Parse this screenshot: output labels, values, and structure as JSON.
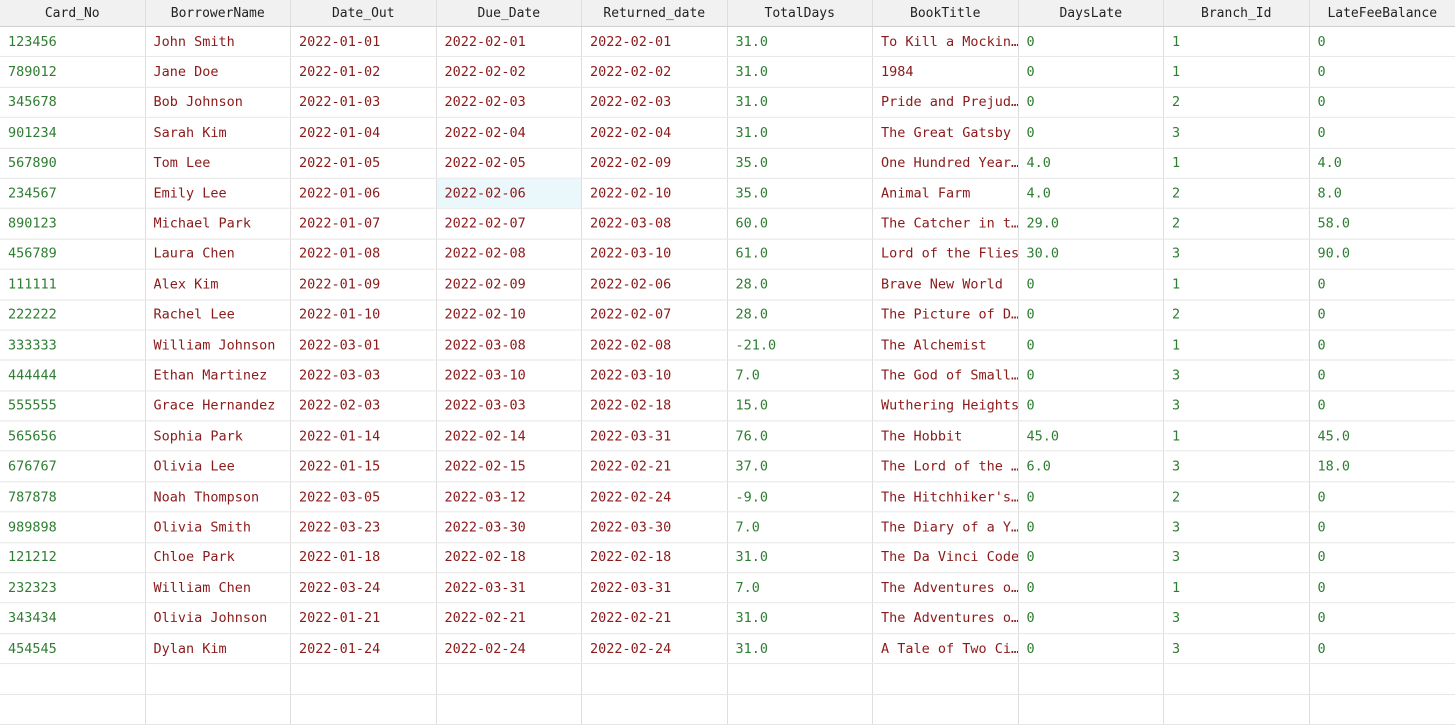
{
  "colors": {
    "number": "#2e7d32",
    "text": "#8b1a1a",
    "header_bg": "#f1f1f1",
    "selected_cell": "#eaf8fb"
  },
  "columns": [
    "Card_No",
    "BorrowerName",
    "Date_Out",
    "Due_Date",
    "Returned_date",
    "TotalDays",
    "BookTitle",
    "DaysLate",
    "Branch_Id",
    "LateFeeBalance"
  ],
  "column_types": [
    "num",
    "text",
    "text",
    "text",
    "text",
    "num",
    "text",
    "num",
    "num",
    "num"
  ],
  "rows": [
    [
      "123456",
      "John Smith",
      "2022-01-01",
      "2022-02-01",
      "2022-02-01",
      "31.0",
      "To Kill a Mockin…",
      "0",
      "1",
      "0"
    ],
    [
      "789012",
      "Jane Doe",
      "2022-01-02",
      "2022-02-02",
      "2022-02-02",
      "31.0",
      "1984",
      "0",
      "1",
      "0"
    ],
    [
      "345678",
      "Bob Johnson",
      "2022-01-03",
      "2022-02-03",
      "2022-02-03",
      "31.0",
      "Pride and Prejud…",
      "0",
      "2",
      "0"
    ],
    [
      "901234",
      "Sarah Kim",
      "2022-01-04",
      "2022-02-04",
      "2022-02-04",
      "31.0",
      "The Great Gatsby",
      "0",
      "3",
      "0"
    ],
    [
      "567890",
      "Tom Lee",
      "2022-01-05",
      "2022-02-05",
      "2022-02-09",
      "35.0",
      "One Hundred Year…",
      "4.0",
      "1",
      "4.0"
    ],
    [
      "234567",
      "Emily Lee",
      "2022-01-06",
      "2022-02-06",
      "2022-02-10",
      "35.0",
      "Animal Farm",
      "4.0",
      "2",
      "8.0"
    ],
    [
      "890123",
      "Michael Park",
      "2022-01-07",
      "2022-02-07",
      "2022-03-08",
      "60.0",
      "The Catcher in t…",
      "29.0",
      "2",
      "58.0"
    ],
    [
      "456789",
      "Laura Chen",
      "2022-01-08",
      "2022-02-08",
      "2022-03-10",
      "61.0",
      "Lord of the Flies",
      "30.0",
      "3",
      "90.0"
    ],
    [
      "111111",
      "Alex Kim",
      "2022-01-09",
      "2022-02-09",
      "2022-02-06",
      "28.0",
      "Brave New World",
      "0",
      "1",
      "0"
    ],
    [
      "222222",
      "Rachel Lee",
      "2022-01-10",
      "2022-02-10",
      "2022-02-07",
      "28.0",
      "The Picture of D…",
      "0",
      "2",
      "0"
    ],
    [
      "333333",
      "William Johnson",
      "2022-03-01",
      "2022-03-08",
      "2022-02-08",
      "-21.0",
      "The Alchemist",
      "0",
      "1",
      "0"
    ],
    [
      "444444",
      "Ethan Martinez",
      "2022-03-03",
      "2022-03-10",
      "2022-03-10",
      "7.0",
      "The God of Small…",
      "0",
      "3",
      "0"
    ],
    [
      "555555",
      "Grace Hernandez",
      "2022-02-03",
      "2022-03-03",
      "2022-02-18",
      "15.0",
      "Wuthering Heights",
      "0",
      "3",
      "0"
    ],
    [
      "565656",
      "Sophia Park",
      "2022-01-14",
      "2022-02-14",
      "2022-03-31",
      "76.0",
      "The Hobbit",
      "45.0",
      "1",
      "45.0"
    ],
    [
      "676767",
      "Olivia Lee",
      "2022-01-15",
      "2022-02-15",
      "2022-02-21",
      "37.0",
      "The Lord of the …",
      "6.0",
      "3",
      "18.0"
    ],
    [
      "787878",
      "Noah Thompson",
      "2022-03-05",
      "2022-03-12",
      "2022-02-24",
      "-9.0",
      "The Hitchhiker's…",
      "0",
      "2",
      "0"
    ],
    [
      "989898",
      "Olivia Smith",
      "2022-03-23",
      "2022-03-30",
      "2022-03-30",
      "7.0",
      "The Diary of a Y…",
      "0",
      "3",
      "0"
    ],
    [
      "121212",
      "Chloe Park",
      "2022-01-18",
      "2022-02-18",
      "2022-02-18",
      "31.0",
      "The Da Vinci Code",
      "0",
      "3",
      "0"
    ],
    [
      "232323",
      "William Chen",
      "2022-03-24",
      "2022-03-31",
      "2022-03-31",
      "7.0",
      "The Adventures o…",
      "0",
      "1",
      "0"
    ],
    [
      "343434",
      "Olivia Johnson",
      "2022-01-21",
      "2022-02-21",
      "2022-02-21",
      "31.0",
      "The Adventures o…",
      "0",
      "3",
      "0"
    ],
    [
      "454545",
      "Dylan Kim",
      "2022-01-24",
      "2022-02-24",
      "2022-02-24",
      "31.0",
      "A Tale of Two Ci…",
      "0",
      "3",
      "0"
    ]
  ],
  "selected": {
    "row": 5,
    "col": 3
  },
  "empty_rows": 2
}
